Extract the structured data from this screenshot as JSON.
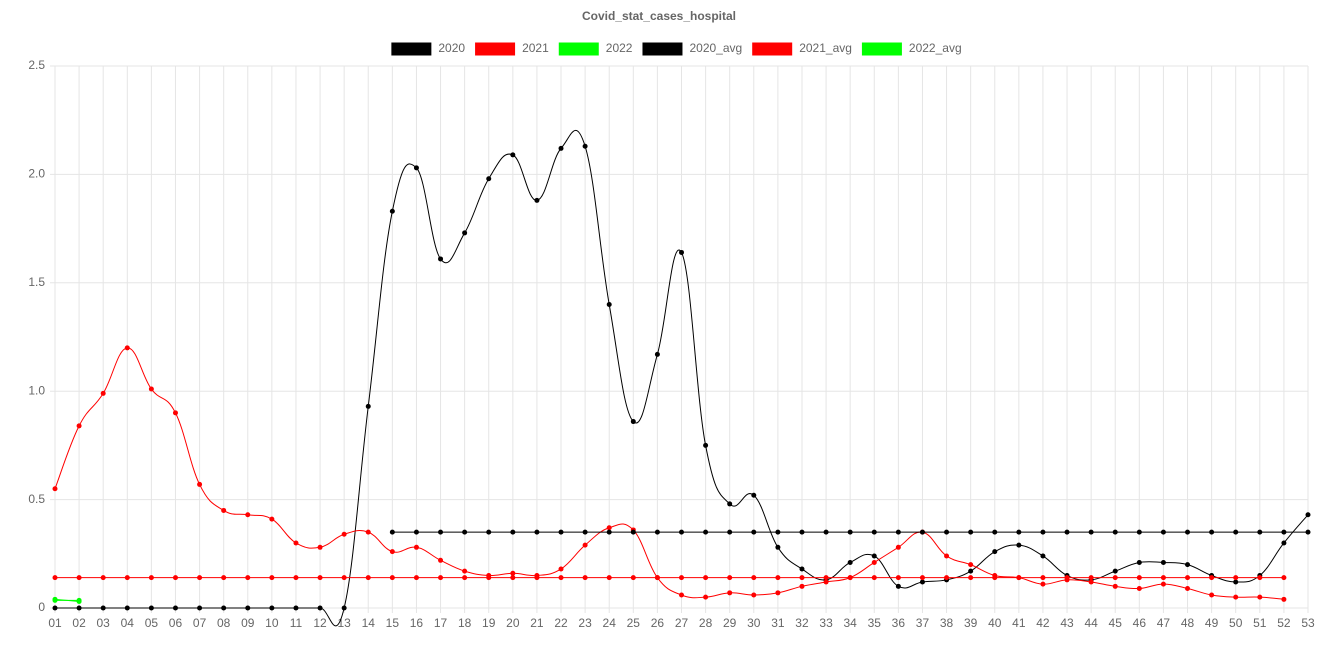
{
  "chart_data": {
    "type": "line",
    "title": "Covid_stat_cases_hospital",
    "categories": [
      "01",
      "02",
      "03",
      "04",
      "05",
      "06",
      "07",
      "08",
      "09",
      "10",
      "11",
      "12",
      "13",
      "14",
      "15",
      "16",
      "17",
      "18",
      "19",
      "20",
      "21",
      "22",
      "23",
      "24",
      "25",
      "26",
      "27",
      "28",
      "29",
      "30",
      "31",
      "32",
      "33",
      "34",
      "35",
      "36",
      "37",
      "38",
      "39",
      "40",
      "41",
      "42",
      "43",
      "44",
      "45",
      "46",
      "47",
      "48",
      "49",
      "50",
      "51",
      "52",
      "53"
    ],
    "ylim": [
      0,
      2.5
    ],
    "yticks": [
      0,
      0.5,
      {
        "value": 1,
        "label": "1.0"
      },
      1.5,
      {
        "value": 2,
        "label": "2.0"
      },
      2.5
    ],
    "grid": true,
    "legend": "top",
    "series": [
      {
        "name": "2020",
        "color": "#000000",
        "values": [
          0,
          0,
          0,
          0,
          0,
          0,
          0,
          0,
          0,
          0,
          0,
          0,
          0,
          0.93,
          1.83,
          2.03,
          1.61,
          1.73,
          1.98,
          2.09,
          1.88,
          2.12,
          2.13,
          1.4,
          0.86,
          1.17,
          1.64,
          0.75,
          0.48,
          0.52,
          0.28,
          0.18,
          0.13,
          0.21,
          0.24,
          0.1,
          0.12,
          0.13,
          0.17,
          0.26,
          0.29,
          0.24,
          0.15,
          0.13,
          0.17,
          0.21,
          0.21,
          0.2,
          0.15,
          0.12,
          0.15,
          0.3,
          0.43
        ]
      },
      {
        "name": "2021",
        "color": "#ff0000",
        "values": [
          0.55,
          0.84,
          0.99,
          1.2,
          1.01,
          0.9,
          0.57,
          0.45,
          0.43,
          0.41,
          0.3,
          0.28,
          0.34,
          0.35,
          0.26,
          0.28,
          0.22,
          0.17,
          0.15,
          0.16,
          0.15,
          0.18,
          0.29,
          0.37,
          0.36,
          0.14,
          0.06,
          0.05,
          0.07,
          0.06,
          0.07,
          0.1,
          0.12,
          0.14,
          0.21,
          0.28,
          0.35,
          0.24,
          0.2,
          0.15,
          0.14,
          0.11,
          0.13,
          0.12,
          0.1,
          0.09,
          0.11,
          0.09,
          0.06,
          0.05,
          0.05,
          0.04,
          null
        ]
      },
      {
        "name": "2022",
        "color": "#00ff00",
        "values": [
          0.04,
          0.03,
          null,
          null,
          null,
          null,
          null,
          null,
          null,
          null,
          null,
          null,
          null,
          null,
          null,
          null,
          null,
          null,
          null,
          null,
          null,
          null,
          null,
          null,
          null,
          null,
          null,
          null,
          null,
          null,
          null,
          null,
          null,
          null,
          null,
          null,
          null,
          null,
          null,
          null,
          null,
          null,
          null,
          null,
          null,
          null,
          null,
          null,
          null,
          null,
          null,
          null,
          null
        ]
      },
      {
        "name": "2020_avg",
        "color": "#000000",
        "values": [
          null,
          null,
          null,
          null,
          null,
          null,
          null,
          null,
          null,
          null,
          null,
          null,
          null,
          null,
          0.35,
          0.35,
          0.35,
          0.35,
          0.35,
          0.35,
          0.35,
          0.35,
          0.35,
          0.35,
          0.35,
          0.35,
          0.35,
          0.35,
          0.35,
          0.35,
          0.35,
          0.35,
          0.35,
          0.35,
          0.35,
          0.35,
          0.35,
          0.35,
          0.35,
          0.35,
          0.35,
          0.35,
          0.35,
          0.35,
          0.35,
          0.35,
          0.35,
          0.35,
          0.35,
          0.35,
          0.35,
          0.35,
          0.35
        ]
      },
      {
        "name": "2021_avg",
        "color": "#ff0000",
        "values": [
          0.14,
          0.14,
          0.14,
          0.14,
          0.14,
          0.14,
          0.14,
          0.14,
          0.14,
          0.14,
          0.14,
          0.14,
          0.14,
          0.14,
          0.14,
          0.14,
          0.14,
          0.14,
          0.14,
          0.14,
          0.14,
          0.14,
          0.14,
          0.14,
          0.14,
          0.14,
          0.14,
          0.14,
          0.14,
          0.14,
          0.14,
          0.14,
          0.14,
          0.14,
          0.14,
          0.14,
          0.14,
          0.14,
          0.14,
          0.14,
          0.14,
          0.14,
          0.14,
          0.14,
          0.14,
          0.14,
          0.14,
          0.14,
          0.14,
          0.14,
          0.14,
          0.14,
          null
        ]
      },
      {
        "name": "2022_avg",
        "color": "#00ff00",
        "values": [
          0.035,
          0.035,
          null,
          null,
          null,
          null,
          null,
          null,
          null,
          null,
          null,
          null,
          null,
          null,
          null,
          null,
          null,
          null,
          null,
          null,
          null,
          null,
          null,
          null,
          null,
          null,
          null,
          null,
          null,
          null,
          null,
          null,
          null,
          null,
          null,
          null,
          null,
          null,
          null,
          null,
          null,
          null,
          null,
          null,
          null,
          null,
          null,
          null,
          null,
          null,
          null,
          null,
          null
        ]
      }
    ]
  }
}
